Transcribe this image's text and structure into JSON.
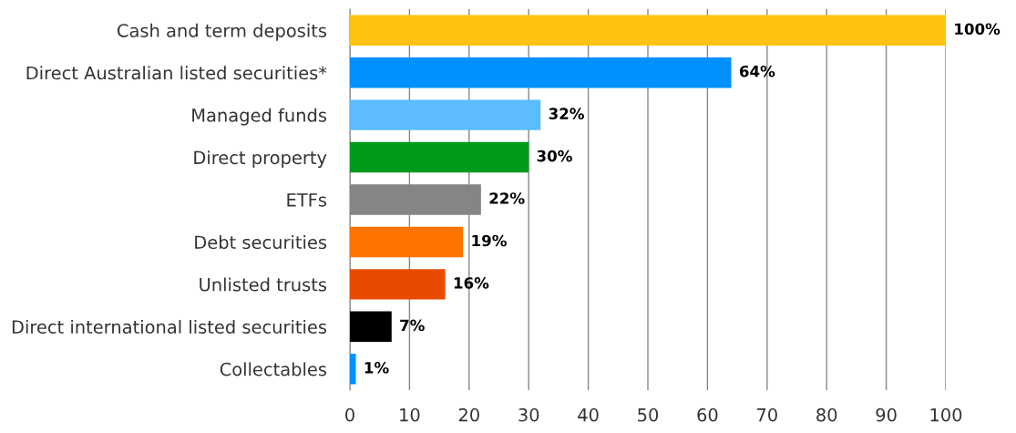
{
  "chart_data": {
    "type": "bar",
    "orientation": "horizontal",
    "categories": [
      "Cash and term deposits",
      "Direct Australian listed securities*",
      "Managed funds",
      "Direct property",
      "ETFs",
      "Debt securities",
      "Unlisted trusts",
      "Direct international listed securities",
      "Collectables"
    ],
    "values": [
      100,
      64,
      32,
      30,
      22,
      19,
      16,
      7,
      1
    ],
    "colors": [
      "#ffc20e",
      "#0091ff",
      "#5bbcff",
      "#009a1a",
      "#858585",
      "#ff7300",
      "#e84a00",
      "#000000",
      "#0091ff"
    ],
    "value_labels": [
      "100%",
      "64%",
      "32%",
      "30%",
      "22%",
      "19%",
      "16%",
      "7%",
      "1%"
    ],
    "xlim": [
      0,
      100
    ],
    "xticks": [
      0,
      10,
      20,
      30,
      40,
      50,
      60,
      70,
      80,
      90,
      100
    ],
    "grid": "x"
  }
}
